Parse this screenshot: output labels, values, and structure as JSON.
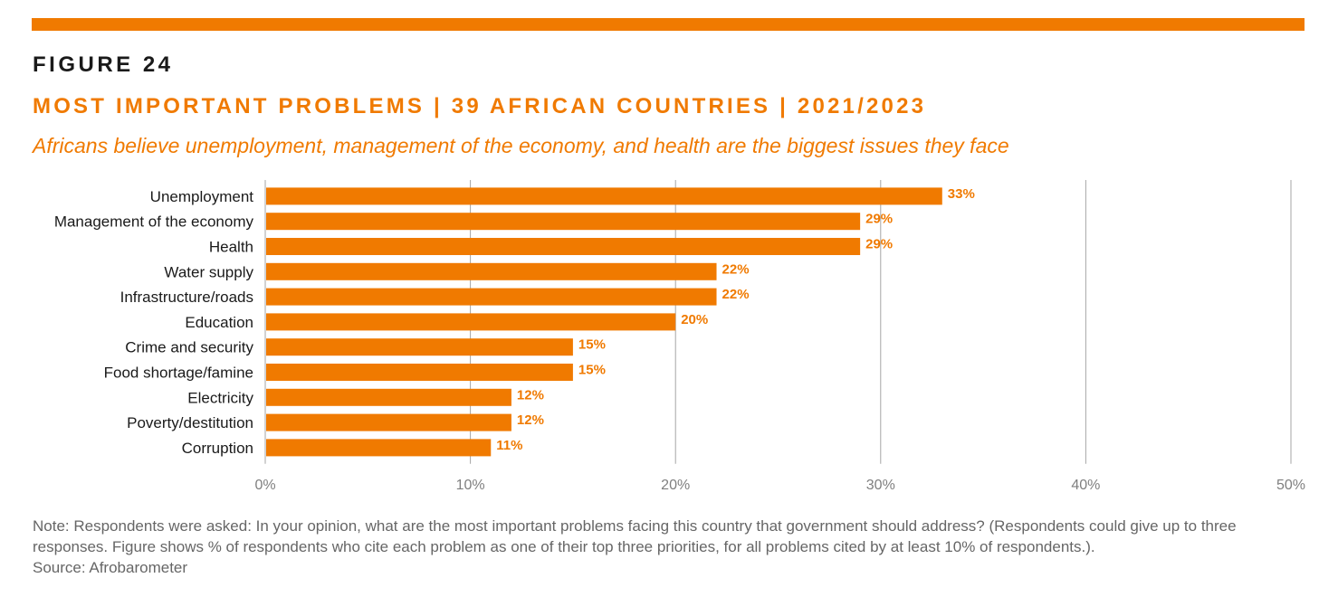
{
  "figure_label": "FIGURE 24",
  "title": "MOST IMPORTANT PROBLEMS | 39 AFRICAN COUNTRIES | 2021/2023",
  "subtitle": "Africans believe unemployment, management of the economy, and health are the biggest issues they face",
  "note": "Note: Respondents were asked: In your opinion, what are the most important problems facing this country that government should address? (Respondents could give up to three responses. Figure shows % of respondents who cite each problem as one of their top three priorities, for all problems cited by at least 10% of respondents.).",
  "source": "Source: Afrobarometer",
  "colors": {
    "accent": "#f07a00",
    "text": "#1a1a1a",
    "grid": "#a6a6a6",
    "axis_text": "#7f7f7f",
    "note_text": "#666666"
  },
  "chart_data": {
    "type": "bar",
    "orientation": "horizontal",
    "categories": [
      "Unemployment",
      "Management of the economy",
      "Health",
      "Water supply",
      "Infrastructure/roads",
      "Education",
      "Crime and security",
      "Food shortage/famine",
      "Electricity",
      "Poverty/destitution",
      "Corruption"
    ],
    "values": [
      33,
      29,
      29,
      22,
      22,
      20,
      15,
      15,
      12,
      12,
      11
    ],
    "value_labels": [
      "33%",
      "29%",
      "29%",
      "22%",
      "22%",
      "20%",
      "15%",
      "15%",
      "12%",
      "12%",
      "11%"
    ],
    "xlim": [
      0,
      50
    ],
    "xticks": [
      0,
      10,
      20,
      30,
      40,
      50
    ],
    "xtick_labels": [
      "0%",
      "10%",
      "20%",
      "30%",
      "40%",
      "50%"
    ],
    "grid": "vertical",
    "legend": "none"
  }
}
